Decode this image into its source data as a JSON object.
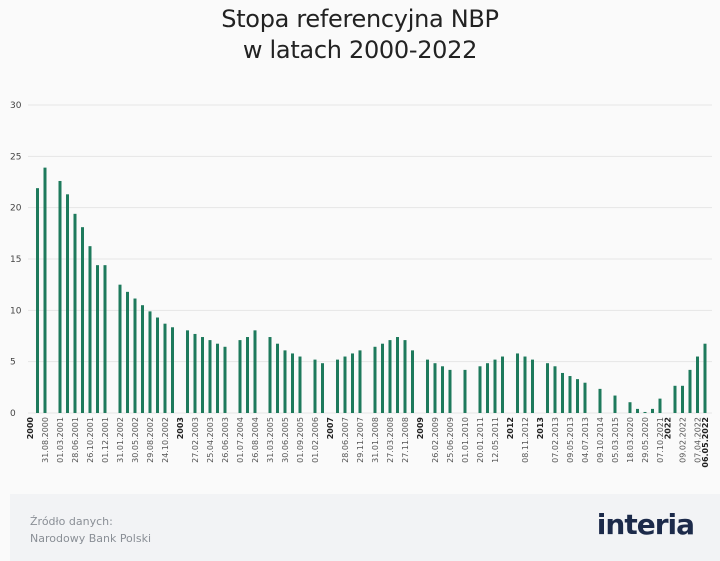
{
  "title_line1": "Stopa referencyjna NBP",
  "title_line2": "w latach 2000-2022",
  "source_label": "Źródło danych:",
  "source_name": "Narodowy Bank Polski",
  "logo": "interia",
  "colors": {
    "bar": "#1e7a5c",
    "grid": "#e6e6e6",
    "footer_bg": "#f2f3f5",
    "logo": "#1c2a4a"
  },
  "chart_data": {
    "type": "bar",
    "title": "Stopa referencyjna NBP w latach 2000-2022",
    "xlabel": "",
    "ylabel": "",
    "ylim": [
      0,
      30
    ],
    "yticks": [
      0,
      5,
      10,
      15,
      20,
      25,
      30
    ],
    "grid": true,
    "categories": [
      "2000",
      "",
      "31.08.2000",
      "",
      "01.03.2001",
      "",
      "28.06.2001",
      "",
      "26.10.2001",
      "",
      "01.12.2001",
      "",
      "31.01.2002",
      "",
      "30.05.2002",
      "",
      "29.08.2002",
      "",
      "24.10.2002",
      "",
      "2003",
      "",
      "27.02.2003",
      "",
      "25.04.2003",
      "",
      "26.06.2003",
      "",
      "01.07.2004",
      "",
      "26.08.2004",
      "",
      "31.03.2005",
      "",
      "30.06.2005",
      "",
      "01.09.2005",
      "",
      "01.02.2006",
      "",
      "2007",
      "",
      "28.06.2007",
      "",
      "29.11.2007",
      "",
      "31.01.2008",
      "",
      "27.03.2008",
      "",
      "27.11.2008",
      "",
      "2009",
      "",
      "26.02.2009",
      "",
      "25.06.2009",
      "",
      "01.01.2010",
      "",
      "20.01.2011",
      "",
      "12.05.2011",
      "",
      "2012",
      "",
      "08.11.2012",
      "",
      "2013",
      "",
      "07.02.2013",
      "",
      "09.05.2013",
      "",
      "04.07.2013",
      "",
      "09.10.2014",
      "",
      "05.03.2015",
      "",
      "18.03.2020",
      "",
      "29.05.2020",
      "",
      "07.10.2021",
      "2022",
      "",
      "09.02.2022",
      "",
      "07.04.2022",
      "06.05.2022"
    ],
    "values": [
      null,
      21.9,
      23.9,
      null,
      22.6,
      21.3,
      19.4,
      18.1,
      16.25,
      14.4,
      14.4,
      null,
      12.5,
      11.8,
      11.15,
      10.5,
      9.9,
      9.3,
      8.7,
      8.35,
      null,
      8.05,
      7.7,
      7.4,
      7.1,
      6.75,
      6.45,
      null,
      7.1,
      7.4,
      8.05,
      null,
      7.4,
      6.75,
      6.1,
      5.8,
      5.5,
      null,
      5.2,
      4.85,
      null,
      5.2,
      5.5,
      5.8,
      6.1,
      null,
      6.45,
      6.75,
      7.1,
      7.4,
      7.1,
      6.1,
      null,
      5.2,
      4.85,
      4.55,
      4.2,
      null,
      4.2,
      null,
      4.55,
      4.85,
      5.2,
      5.5,
      null,
      5.8,
      5.5,
      5.2,
      null,
      4.85,
      4.55,
      3.9,
      3.6,
      3.3,
      2.95,
      null,
      2.35,
      null,
      1.7,
      null,
      1.05,
      0.4,
      0.1,
      0.4,
      1.4,
      null,
      2.65,
      2.65,
      4.2,
      5.5,
      6.75
    ]
  }
}
